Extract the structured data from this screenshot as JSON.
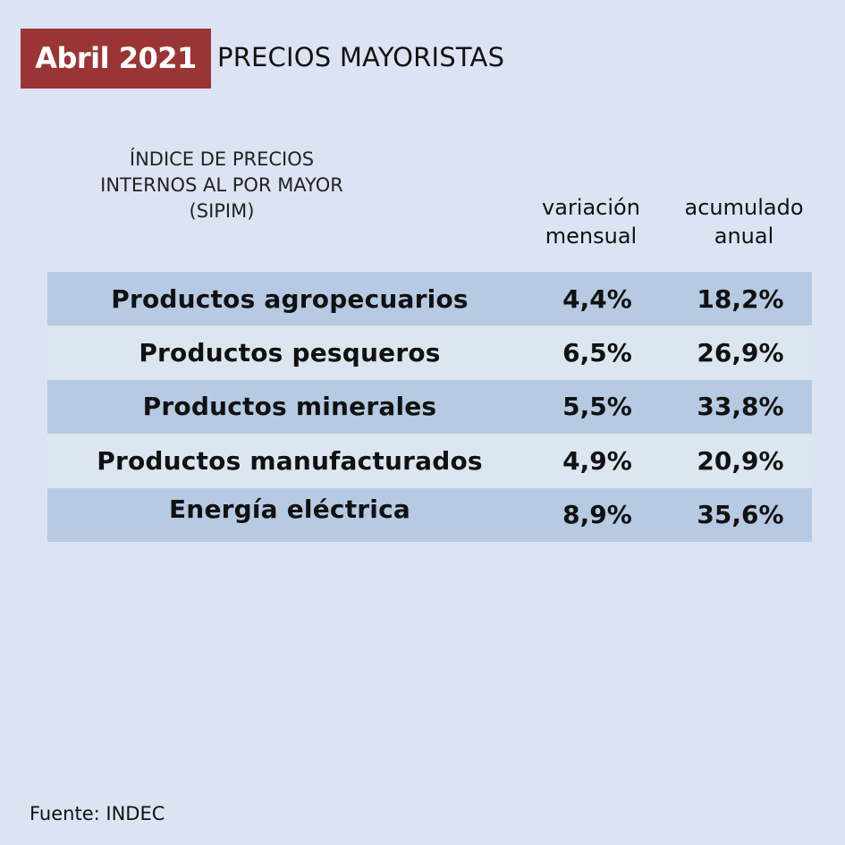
{
  "header": {
    "date_badge": "Abril 2021",
    "title": "PRECIOS MAYORISTAS"
  },
  "index_label": {
    "line1": "ÍNDICE DE PRECIOS",
    "line2": "INTERNOS AL POR MAYOR",
    "line3": "(SIPIM)"
  },
  "columns": {
    "monthly": {
      "line1": "variación",
      "line2": "mensual"
    },
    "annual": {
      "line1": "acumulado",
      "line2": "anual"
    }
  },
  "colors": {
    "background": "#dce4f3",
    "badge": "#9b3535",
    "row_dark": "#b6cae3",
    "row_light": "#dce6f1"
  },
  "chart_data": {
    "type": "table",
    "title": "PRECIOS MAYORISTAS",
    "columns": [
      "variación mensual",
      "acumulado anual"
    ],
    "rows": [
      {
        "label": "Productos agropecuarios",
        "monthly": "4,4%",
        "annual": "18,2%"
      },
      {
        "label": "Productos pesqueros",
        "monthly": "6,5%",
        "annual": "26,9%"
      },
      {
        "label": "Productos minerales",
        "monthly": "5,5%",
        "annual": "33,8%"
      },
      {
        "label": "Productos manufacturados",
        "monthly": "4,9%",
        "annual": "20,9%"
      },
      {
        "label": "Energía eléctrica",
        "monthly": "8,9%",
        "annual": "35,6%"
      }
    ]
  },
  "footer": {
    "source": "Fuente: INDEC"
  }
}
